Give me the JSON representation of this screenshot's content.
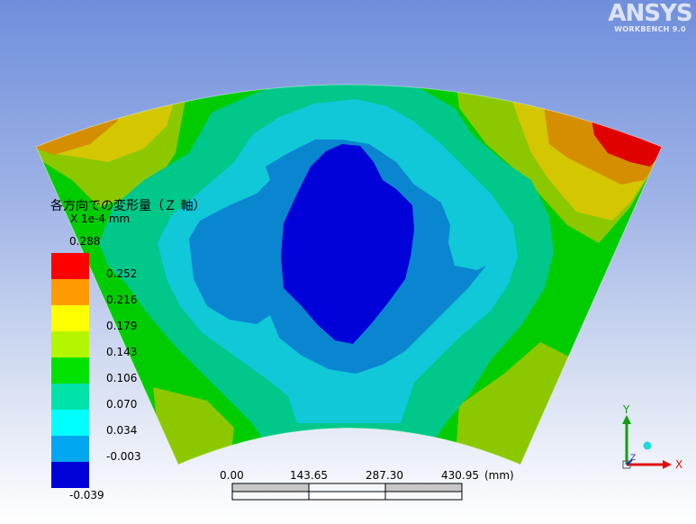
{
  "app": {
    "brand": "ANSYS",
    "version": "WORKBENCH 9.0"
  },
  "legend": {
    "title": "各方向での変形量（Ｚ 軸）",
    "units": "X 1e-4 mm",
    "values": [
      "0.288",
      "0.252",
      "0.216",
      "0.179",
      "0.143",
      "0.106",
      "0.070",
      "0.034",
      "-0.003",
      "-0.039"
    ],
    "colors": [
      "#ff0000",
      "#ff9a00",
      "#ffff00",
      "#b4f500",
      "#00e200",
      "#00e3a8",
      "#00ffff",
      "#00a6ee",
      "#0000d8"
    ]
  },
  "scale_bar": {
    "ticks": [
      "0.00",
      "143.65",
      "287.30",
      "430.95"
    ],
    "unit": "(mm)"
  },
  "triad": {
    "x_label": "X",
    "y_label": "Y",
    "z_label": "Z",
    "x_color": "#e01010",
    "y_color": "#10a010",
    "z_color": "#2020d0"
  },
  "contour_colors": {
    "level_1": "#0000d8",
    "level_2": "#0a86d0",
    "level_3": "#10c8d8",
    "level_4": "#00c88a",
    "level_5": "#00cc00",
    "level_6": "#8cc800",
    "level_7": "#d4c600",
    "level_8": "#d48e00",
    "level_9": "#e00000"
  }
}
